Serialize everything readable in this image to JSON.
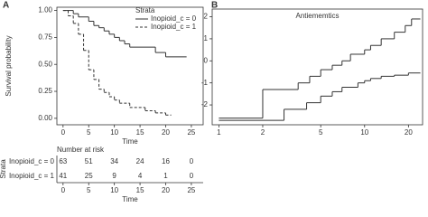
{
  "chart_data": [
    {
      "type": "step",
      "panel": "A",
      "ylabel": "Survival probability",
      "xlabel": "Time",
      "legend": "top-right",
      "legend_title": "Strata",
      "xlim": [
        -1.2,
        27.3
      ],
      "xticks": [
        0,
        5,
        10,
        15,
        20,
        25
      ],
      "ylim": [
        -0.06,
        1.03
      ],
      "yticks": [
        {
          "value": 0,
          "label": "0.00"
        },
        {
          "value": 0.25,
          "label": "0.25"
        },
        {
          "value": 0.5,
          "label": "0.50"
        },
        {
          "value": 0.75,
          "label": "0.75"
        },
        {
          "value": 1,
          "label": "1.00"
        }
      ],
      "series": [
        {
          "name": "Inopioid_c = 0",
          "color": "#333333",
          "line_style": "solid",
          "x": [
            0,
            2,
            3,
            5,
            6,
            7,
            8,
            9,
            10,
            11,
            12,
            13,
            18,
            20,
            24
          ],
          "values": [
            1.0,
            0.97,
            0.94,
            0.9,
            0.86,
            0.84,
            0.81,
            0.78,
            0.75,
            0.72,
            0.69,
            0.66,
            0.61,
            0.57,
            0.57
          ]
        },
        {
          "name": "Inopioid_c = 1",
          "color": "#333333",
          "line_style": "dashed",
          "x": [
            0,
            1,
            2,
            3,
            4,
            5,
            6,
            7,
            8,
            9,
            10,
            11,
            13,
            16,
            18,
            20,
            21
          ],
          "values": [
            1.0,
            0.95,
            0.88,
            0.78,
            0.63,
            0.45,
            0.36,
            0.27,
            0.24,
            0.2,
            0.17,
            0.14,
            0.1,
            0.07,
            0.05,
            0.03,
            0.03
          ]
        }
      ]
    },
    {
      "type": "risk-table",
      "title": "Number at risk",
      "ylabel": "Strata",
      "xlabel": "Time",
      "xlim": [
        -1.2,
        27.3
      ],
      "x": [
        0,
        5,
        10,
        15,
        20,
        25
      ],
      "rows": [
        {
          "name": "Inopioid_c = 0",
          "values": [
            63,
            51,
            34,
            24,
            16,
            0
          ]
        },
        {
          "name": "Inopioid_c = 1",
          "values": [
            41,
            25,
            9,
            4,
            1,
            0
          ]
        }
      ]
    },
    {
      "type": "step",
      "panel": "B",
      "title": "Antiememtics",
      "xscale": "log",
      "xlim": [
        0.9,
        25
      ],
      "xticks": [
        1,
        2,
        5,
        10,
        20
      ],
      "ylim": [
        -2.9,
        2.35
      ],
      "yticks": [
        -2,
        -1,
        0,
        1,
        2
      ],
      "series": [
        {
          "color": "#333333",
          "line_style": "solid",
          "x": [
            1,
            2,
            3.5,
            4.2,
            5,
            6,
            7,
            8,
            10,
            11,
            13,
            16,
            19,
            21,
            24
          ],
          "values": [
            -2.6,
            -1.3,
            -1.0,
            -0.7,
            -0.4,
            -0.2,
            0.0,
            0.3,
            0.5,
            0.7,
            1.0,
            1.3,
            1.6,
            1.9,
            1.9
          ]
        },
        {
          "color": "#333333",
          "line_style": "solid",
          "x": [
            1,
            2.8,
            4,
            5,
            6,
            7,
            9,
            10,
            11,
            13,
            16,
            20,
            24
          ],
          "values": [
            -2.7,
            -2.2,
            -1.9,
            -1.6,
            -1.4,
            -1.2,
            -1.0,
            -0.9,
            -0.8,
            -0.7,
            -0.65,
            -0.55,
            -0.55
          ]
        }
      ]
    }
  ]
}
